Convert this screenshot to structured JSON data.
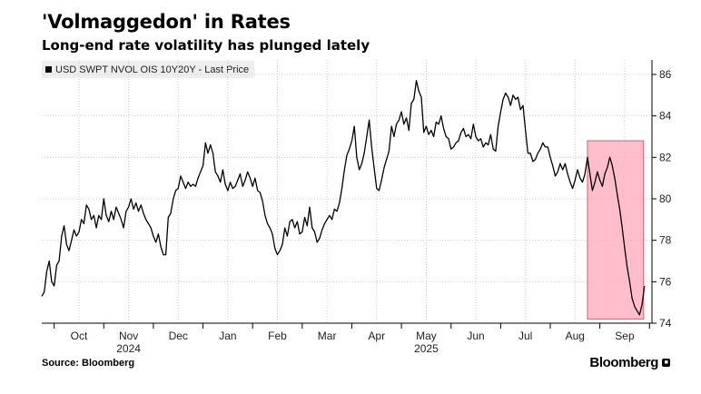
{
  "title": "'Volmaggedon' in Rates",
  "subtitle": "Long-end rate volatility has plunged lately",
  "legend": {
    "label": "USD SWPT NVOL OIS 10Y20Y - Last Price"
  },
  "source": "Source: Bloomberg",
  "brand": "Bloomberg",
  "colors": {
    "line": "#000000",
    "highlight": "#ffb3c0",
    "highlight_border": "#e05a70",
    "grid": "#cccccc"
  },
  "chart_data": {
    "type": "line",
    "title": "'Volmaggedon' in Rates",
    "series": [
      {
        "name": "USD SWPT NVOL OIS 10Y20Y - Last Price"
      }
    ],
    "x_domain": [
      0,
      12.3
    ],
    "ylim": [
      74,
      86.7
    ],
    "y_ticks": [
      74,
      76,
      78,
      80,
      82,
      84,
      86
    ],
    "y_axis_side": "right",
    "x_ticks": [
      {
        "label": "Oct",
        "pos": 0.75
      },
      {
        "label": "Nov",
        "pos": 1.75
      },
      {
        "label": "Dec",
        "pos": 2.75
      },
      {
        "label": "Jan",
        "pos": 3.75
      },
      {
        "label": "Feb",
        "pos": 4.75
      },
      {
        "label": "Mar",
        "pos": 5.75
      },
      {
        "label": "Apr",
        "pos": 6.75
      },
      {
        "label": "May",
        "pos": 7.75
      },
      {
        "label": "Jun",
        "pos": 8.75
      },
      {
        "label": "Jul",
        "pos": 9.75
      },
      {
        "label": "Aug",
        "pos": 10.75
      },
      {
        "label": "Sep",
        "pos": 11.75
      }
    ],
    "year_labels": [
      {
        "label": "2024",
        "pos": 1.75
      },
      {
        "label": "2025",
        "pos": 7.75
      }
    ],
    "highlight": {
      "x_start": 11.0,
      "x_end": 12.13,
      "y_bottom": 74.2,
      "y_top": 82.8
    },
    "points": [
      [
        0.0,
        75.3
      ],
      [
        0.05,
        75.5
      ],
      [
        0.1,
        76.5
      ],
      [
        0.15,
        77.0
      ],
      [
        0.2,
        76.0
      ],
      [
        0.25,
        75.8
      ],
      [
        0.3,
        76.8
      ],
      [
        0.35,
        77.0
      ],
      [
        0.4,
        78.2
      ],
      [
        0.45,
        78.7
      ],
      [
        0.5,
        77.8
      ],
      [
        0.55,
        77.5
      ],
      [
        0.6,
        78.0
      ],
      [
        0.65,
        78.5
      ],
      [
        0.7,
        78.2
      ],
      [
        0.75,
        78.4
      ],
      [
        0.8,
        79.0
      ],
      [
        0.85,
        78.8
      ],
      [
        0.9,
        79.7
      ],
      [
        0.95,
        79.5
      ],
      [
        1.0,
        79.0
      ],
      [
        1.05,
        79.2
      ],
      [
        1.1,
        78.6
      ],
      [
        1.15,
        79.2
      ],
      [
        1.2,
        79.0
      ],
      [
        1.25,
        80.0
      ],
      [
        1.3,
        79.2
      ],
      [
        1.35,
        78.9
      ],
      [
        1.4,
        79.4
      ],
      [
        1.45,
        79.0
      ],
      [
        1.5,
        79.6
      ],
      [
        1.55,
        79.3
      ],
      [
        1.6,
        79.0
      ],
      [
        1.65,
        78.6
      ],
      [
        1.7,
        79.4
      ],
      [
        1.75,
        79.6
      ],
      [
        1.8,
        80.0
      ],
      [
        1.85,
        79.5
      ],
      [
        1.9,
        79.8
      ],
      [
        1.95,
        79.4
      ],
      [
        2.0,
        79.7
      ],
      [
        2.05,
        79.3
      ],
      [
        2.1,
        79.0
      ],
      [
        2.15,
        78.8
      ],
      [
        2.2,
        78.6
      ],
      [
        2.25,
        78.2
      ],
      [
        2.3,
        77.9
      ],
      [
        2.35,
        78.3
      ],
      [
        2.4,
        77.7
      ],
      [
        2.45,
        77.3
      ],
      [
        2.5,
        77.3
      ],
      [
        2.55,
        79.1
      ],
      [
        2.6,
        79.3
      ],
      [
        2.65,
        80.0
      ],
      [
        2.7,
        80.4
      ],
      [
        2.75,
        80.5
      ],
      [
        2.8,
        81.1
      ],
      [
        2.85,
        80.8
      ],
      [
        2.9,
        80.5
      ],
      [
        2.95,
        80.8
      ],
      [
        3.0,
        80.6
      ],
      [
        3.05,
        80.7
      ],
      [
        3.1,
        80.6
      ],
      [
        3.15,
        81.0
      ],
      [
        3.2,
        81.3
      ],
      [
        3.25,
        81.6
      ],
      [
        3.3,
        82.7
      ],
      [
        3.35,
        82.2
      ],
      [
        3.4,
        82.6
      ],
      [
        3.45,
        82.2
      ],
      [
        3.5,
        81.3
      ],
      [
        3.55,
        81.1
      ],
      [
        3.6,
        80.8
      ],
      [
        3.65,
        81.4
      ],
      [
        3.7,
        80.7
      ],
      [
        3.75,
        80.4
      ],
      [
        3.8,
        80.8
      ],
      [
        3.85,
        80.5
      ],
      [
        3.9,
        80.6
      ],
      [
        3.95,
        80.9
      ],
      [
        4.0,
        81.2
      ],
      [
        4.05,
        80.6
      ],
      [
        4.1,
        80.9
      ],
      [
        4.15,
        81.3
      ],
      [
        4.2,
        81.0
      ],
      [
        4.25,
        80.6
      ],
      [
        4.3,
        81.0
      ],
      [
        4.35,
        80.4
      ],
      [
        4.4,
        80.3
      ],
      [
        4.45,
        79.9
      ],
      [
        4.5,
        79.2
      ],
      [
        4.55,
        78.8
      ],
      [
        4.6,
        78.6
      ],
      [
        4.65,
        78.3
      ],
      [
        4.7,
        77.6
      ],
      [
        4.75,
        77.3
      ],
      [
        4.8,
        77.5
      ],
      [
        4.85,
        77.8
      ],
      [
        4.9,
        78.6
      ],
      [
        4.95,
        78.2
      ],
      [
        5.0,
        78.9
      ],
      [
        5.05,
        79.0
      ],
      [
        5.1,
        78.6
      ],
      [
        5.15,
        78.9
      ],
      [
        5.2,
        78.3
      ],
      [
        5.25,
        78.4
      ],
      [
        5.3,
        79.1
      ],
      [
        5.35,
        78.7
      ],
      [
        5.4,
        79.6
      ],
      [
        5.45,
        78.6
      ],
      [
        5.5,
        78.4
      ],
      [
        5.55,
        77.9
      ],
      [
        5.6,
        78.1
      ],
      [
        5.65,
        78.5
      ],
      [
        5.7,
        78.8
      ],
      [
        5.75,
        79.0
      ],
      [
        5.8,
        79.2
      ],
      [
        5.85,
        79.0
      ],
      [
        5.9,
        79.5
      ],
      [
        5.95,
        79.4
      ],
      [
        6.0,
        79.8
      ],
      [
        6.05,
        80.5
      ],
      [
        6.1,
        81.4
      ],
      [
        6.15,
        82.1
      ],
      [
        6.2,
        82.4
      ],
      [
        6.25,
        82.8
      ],
      [
        6.3,
        83.5
      ],
      [
        6.35,
        82.0
      ],
      [
        6.4,
        81.4
      ],
      [
        6.45,
        81.7
      ],
      [
        6.5,
        82.2
      ],
      [
        6.55,
        83.0
      ],
      [
        6.6,
        83.8
      ],
      [
        6.65,
        82.5
      ],
      [
        6.7,
        81.5
      ],
      [
        6.75,
        80.5
      ],
      [
        6.8,
        80.4
      ],
      [
        6.85,
        80.9
      ],
      [
        6.9,
        81.5
      ],
      [
        6.95,
        81.9
      ],
      [
        7.0,
        82.3
      ],
      [
        7.05,
        83.5
      ],
      [
        7.1,
        83.0
      ],
      [
        7.15,
        83.6
      ],
      [
        7.2,
        83.8
      ],
      [
        7.25,
        84.2
      ],
      [
        7.3,
        83.6
      ],
      [
        7.35,
        83.9
      ],
      [
        7.4,
        83.3
      ],
      [
        7.45,
        84.6
      ],
      [
        7.5,
        84.8
      ],
      [
        7.55,
        85.7
      ],
      [
        7.6,
        85.2
      ],
      [
        7.65,
        84.9
      ],
      [
        7.7,
        83.2
      ],
      [
        7.75,
        83.5
      ],
      [
        7.8,
        83.1
      ],
      [
        7.85,
        83.3
      ],
      [
        7.9,
        83.0
      ],
      [
        7.95,
        83.7
      ],
      [
        8.0,
        83.6
      ],
      [
        8.05,
        84.0
      ],
      [
        8.1,
        83.4
      ],
      [
        8.15,
        83.0
      ],
      [
        8.2,
        82.9
      ],
      [
        8.25,
        82.4
      ],
      [
        8.3,
        82.5
      ],
      [
        8.35,
        82.7
      ],
      [
        8.4,
        82.8
      ],
      [
        8.45,
        83.2
      ],
      [
        8.5,
        83.4
      ],
      [
        8.55,
        83.0
      ],
      [
        8.6,
        83.1
      ],
      [
        8.65,
        82.9
      ],
      [
        8.7,
        83.6
      ],
      [
        8.75,
        83.0
      ],
      [
        8.8,
        82.8
      ],
      [
        8.85,
        82.9
      ],
      [
        8.9,
        82.5
      ],
      [
        8.95,
        82.7
      ],
      [
        9.0,
        82.6
      ],
      [
        9.05,
        83.1
      ],
      [
        9.1,
        82.4
      ],
      [
        9.15,
        82.3
      ],
      [
        9.2,
        83.5
      ],
      [
        9.25,
        84.2
      ],
      [
        9.3,
        84.8
      ],
      [
        9.35,
        85.1
      ],
      [
        9.4,
        84.9
      ],
      [
        9.45,
        84.5
      ],
      [
        9.5,
        85.0
      ],
      [
        9.55,
        84.8
      ],
      [
        9.6,
        84.9
      ],
      [
        9.65,
        84.3
      ],
      [
        9.7,
        84.5
      ],
      [
        9.75,
        83.3
      ],
      [
        9.8,
        82.2
      ],
      [
        9.85,
        82.2
      ],
      [
        9.9,
        81.8
      ],
      [
        9.95,
        81.9
      ],
      [
        10.0,
        82.2
      ],
      [
        10.05,
        82.4
      ],
      [
        10.1,
        82.7
      ],
      [
        10.15,
        82.5
      ],
      [
        10.2,
        82.5
      ],
      [
        10.25,
        82.0
      ],
      [
        10.3,
        81.6
      ],
      [
        10.35,
        81.1
      ],
      [
        10.4,
        81.3
      ],
      [
        10.45,
        81.7
      ],
      [
        10.5,
        81.4
      ],
      [
        10.55,
        81.7
      ],
      [
        10.6,
        81.2
      ],
      [
        10.65,
        80.8
      ],
      [
        10.7,
        80.5
      ],
      [
        10.75,
        80.9
      ],
      [
        10.8,
        81.4
      ],
      [
        10.85,
        81.0
      ],
      [
        10.9,
        80.8
      ],
      [
        10.95,
        81.2
      ],
      [
        11.0,
        82.0
      ],
      [
        11.05,
        81.2
      ],
      [
        11.1,
        80.4
      ],
      [
        11.15,
        80.8
      ],
      [
        11.2,
        81.3
      ],
      [
        11.25,
        80.9
      ],
      [
        11.3,
        80.6
      ],
      [
        11.35,
        81.2
      ],
      [
        11.4,
        81.5
      ],
      [
        11.45,
        82.0
      ],
      [
        11.5,
        81.6
      ],
      [
        11.55,
        81.0
      ],
      [
        11.6,
        80.2
      ],
      [
        11.65,
        79.5
      ],
      [
        11.7,
        78.6
      ],
      [
        11.75,
        77.6
      ],
      [
        11.8,
        76.7
      ],
      [
        11.85,
        76.0
      ],
      [
        11.9,
        75.2
      ],
      [
        11.95,
        74.8
      ],
      [
        12.0,
        74.6
      ],
      [
        12.05,
        74.4
      ],
      [
        12.1,
        74.9
      ],
      [
        12.15,
        75.8
      ]
    ]
  }
}
